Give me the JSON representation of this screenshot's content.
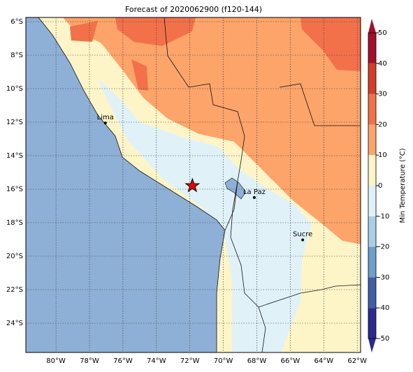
{
  "title": "Forecast of 2020062900 (f120-144)",
  "map": {
    "xlim": [
      -81.8,
      -61.8
    ],
    "ylim": [
      -25.75,
      -5.75
    ],
    "lon_ticks": [
      {
        "value": -80,
        "label": "80°W"
      },
      {
        "value": -78,
        "label": "78°W"
      },
      {
        "value": -76,
        "label": "76°W"
      },
      {
        "value": -74,
        "label": "74°W"
      },
      {
        "value": -72,
        "label": "72°W"
      },
      {
        "value": -70,
        "label": "70°W"
      },
      {
        "value": -68,
        "label": "68°W"
      },
      {
        "value": -66,
        "label": "66°W"
      },
      {
        "value": -64,
        "label": "64°W"
      },
      {
        "value": -62,
        "label": "62°W"
      }
    ],
    "lat_ticks": [
      {
        "value": -6,
        "label": "6°S"
      },
      {
        "value": -8,
        "label": "8°S"
      },
      {
        "value": -10,
        "label": "10°S"
      },
      {
        "value": -12,
        "label": "12°S"
      },
      {
        "value": -14,
        "label": "14°S"
      },
      {
        "value": -16,
        "label": "16°S"
      },
      {
        "value": -18,
        "label": "18°S"
      },
      {
        "value": -20,
        "label": "20°S"
      },
      {
        "value": -22,
        "label": "22°S"
      },
      {
        "value": -24,
        "label": "24°S"
      }
    ],
    "places": [
      {
        "name": "Lima",
        "lon": -77.05,
        "lat": -12.05
      },
      {
        "name": "La Paz",
        "lon": -68.15,
        "lat": -16.5
      },
      {
        "name": "Sucre",
        "lon": -65.26,
        "lat": -19.03
      }
    ],
    "marker": {
      "lon": -71.85,
      "lat": -15.8
    }
  },
  "colorbar": {
    "label": "Min Temperature (°C)",
    "ticks": [
      50,
      40,
      30,
      20,
      10,
      0,
      -10,
      -20,
      -30,
      -40,
      -50
    ],
    "levels": [
      {
        "from": -50,
        "to": -40,
        "color": "#2a2a8e"
      },
      {
        "from": -40,
        "to": -30,
        "color": "#3f5fa8"
      },
      {
        "from": -30,
        "to": -20,
        "color": "#6d9fcb"
      },
      {
        "from": -20,
        "to": -10,
        "color": "#a8cfe5"
      },
      {
        "from": -10,
        "to": 0,
        "color": "#e0f2f8"
      },
      {
        "from": 0,
        "to": 10,
        "color": "#fdf5c8"
      },
      {
        "from": 10,
        "to": 20,
        "color": "#fca46a"
      },
      {
        "from": 20,
        "to": 30,
        "color": "#f2714a"
      },
      {
        "from": 30,
        "to": 40,
        "color": "#d43d2a"
      },
      {
        "from": 40,
        "to": 50,
        "color": "#a4102a"
      }
    ]
  }
}
